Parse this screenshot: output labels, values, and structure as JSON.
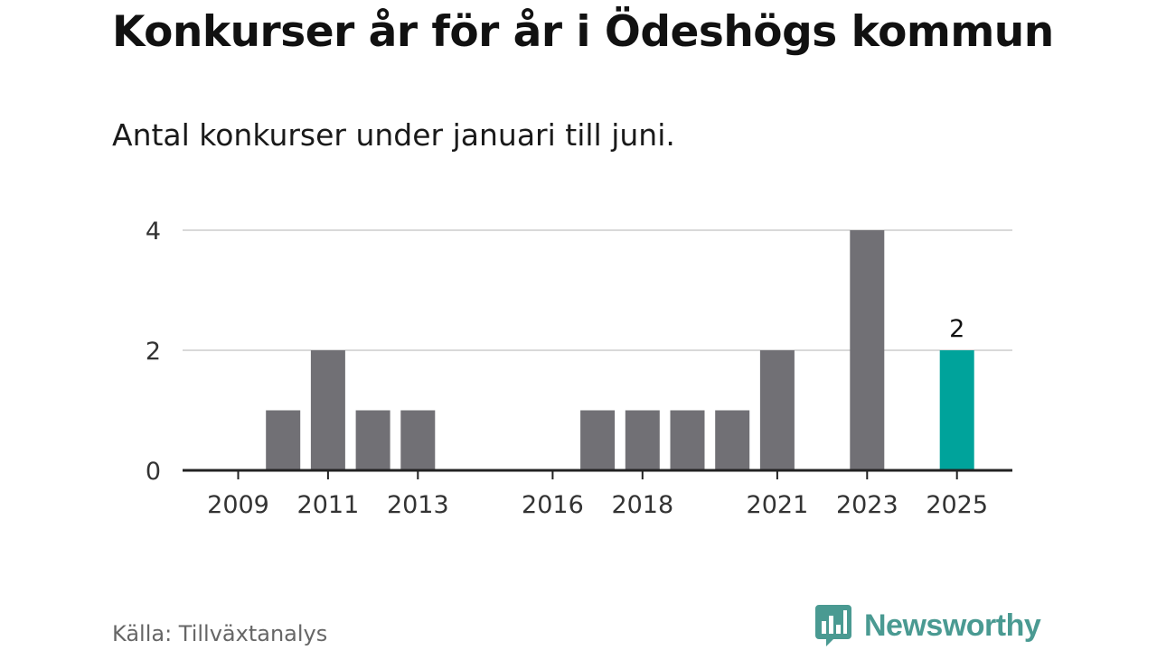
{
  "colors": {
    "bar": "#717075",
    "highlight": "#00a39b",
    "grid": "#d9d9d9",
    "axis": "#222222",
    "tick_text": "#333333",
    "brand": "#4a9a92"
  },
  "chart_data": {
    "type": "bar",
    "title": "Konkurser år för år i Ödeshögs kommun",
    "subtitle": "Antal konkurser under januari till juni.",
    "xlabel": "",
    "ylabel": "",
    "categories": [
      "2009",
      "2010",
      "2011",
      "2012",
      "2013",
      "2014",
      "2015",
      "2016",
      "2017",
      "2018",
      "2019",
      "2020",
      "2021",
      "2022",
      "2023",
      "2024",
      "2025"
    ],
    "values": [
      0,
      1,
      2,
      1,
      1,
      0,
      0,
      0,
      1,
      1,
      1,
      1,
      2,
      0,
      4,
      0,
      2
    ],
    "x_tick_labels": [
      "2009",
      "2011",
      "2013",
      "2016",
      "2018",
      "2021",
      "2023",
      "2025"
    ],
    "y_ticks": [
      0,
      2,
      4
    ],
    "y_tick_labels": [
      "0",
      "2",
      "4"
    ],
    "ylim": [
      0,
      4
    ],
    "grid": true,
    "highlight_category": "2025",
    "data_labels": [
      {
        "category": "2025",
        "text": "2"
      }
    ],
    "legend": "none"
  },
  "footer": {
    "source": "Källa: Tillväxtanalys",
    "brand": "Newsworthy",
    "brand_icon": "bar-chart-speech-bubble-icon"
  }
}
